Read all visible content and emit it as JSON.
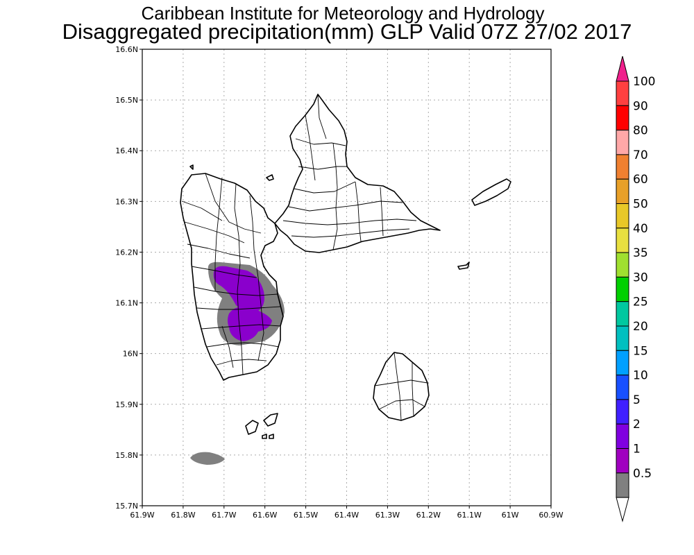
{
  "title": {
    "line1": "Caribbean Institute for Meteorology and Hydrology",
    "line2": "Disaggregated precipitation(mm) GLP Valid 07Z 27/02 2017"
  },
  "axes": {
    "lat_ticks": [
      "16.6N",
      "16.5N",
      "16.4N",
      "16.3N",
      "16.2N",
      "16.1N",
      "16N",
      "15.9N",
      "15.8N",
      "15.7N"
    ],
    "lon_ticks": [
      "61.9W",
      "61.8W",
      "61.7W",
      "61.6W",
      "61.5W",
      "61.4W",
      "61.3W",
      "61.2W",
      "61.1W",
      "61W",
      "60.9W"
    ]
  },
  "legend": {
    "levels": [
      {
        "label": "100",
        "color": "#ff4040"
      },
      {
        "label": "90",
        "color": "#ff0000"
      },
      {
        "label": "80",
        "color": "#ffa8a8"
      },
      {
        "label": "70",
        "color": "#f08030"
      },
      {
        "label": "60",
        "color": "#e8a028"
      },
      {
        "label": "50",
        "color": "#e8c828"
      },
      {
        "label": "40",
        "color": "#e8e040"
      },
      {
        "label": "35",
        "color": "#a0e030"
      },
      {
        "label": "30",
        "color": "#00d000"
      },
      {
        "label": "25",
        "color": "#00c8a0"
      },
      {
        "label": "20",
        "color": "#00c0c0"
      },
      {
        "label": "15",
        "color": "#00a0ff"
      },
      {
        "label": "10",
        "color": "#1850ff"
      },
      {
        "label": "5",
        "color": "#4020ff"
      },
      {
        "label": "2",
        "color": "#8000e0"
      },
      {
        "label": "1",
        "color": "#a000c0"
      },
      {
        "label": "0.5",
        "color": "#808080"
      }
    ],
    "top_arrow_color": "#f0208c"
  },
  "colors": {
    "precip_light": "#808080",
    "precip_heavy": "#8a00cc",
    "grid": "#aaaaaa"
  }
}
